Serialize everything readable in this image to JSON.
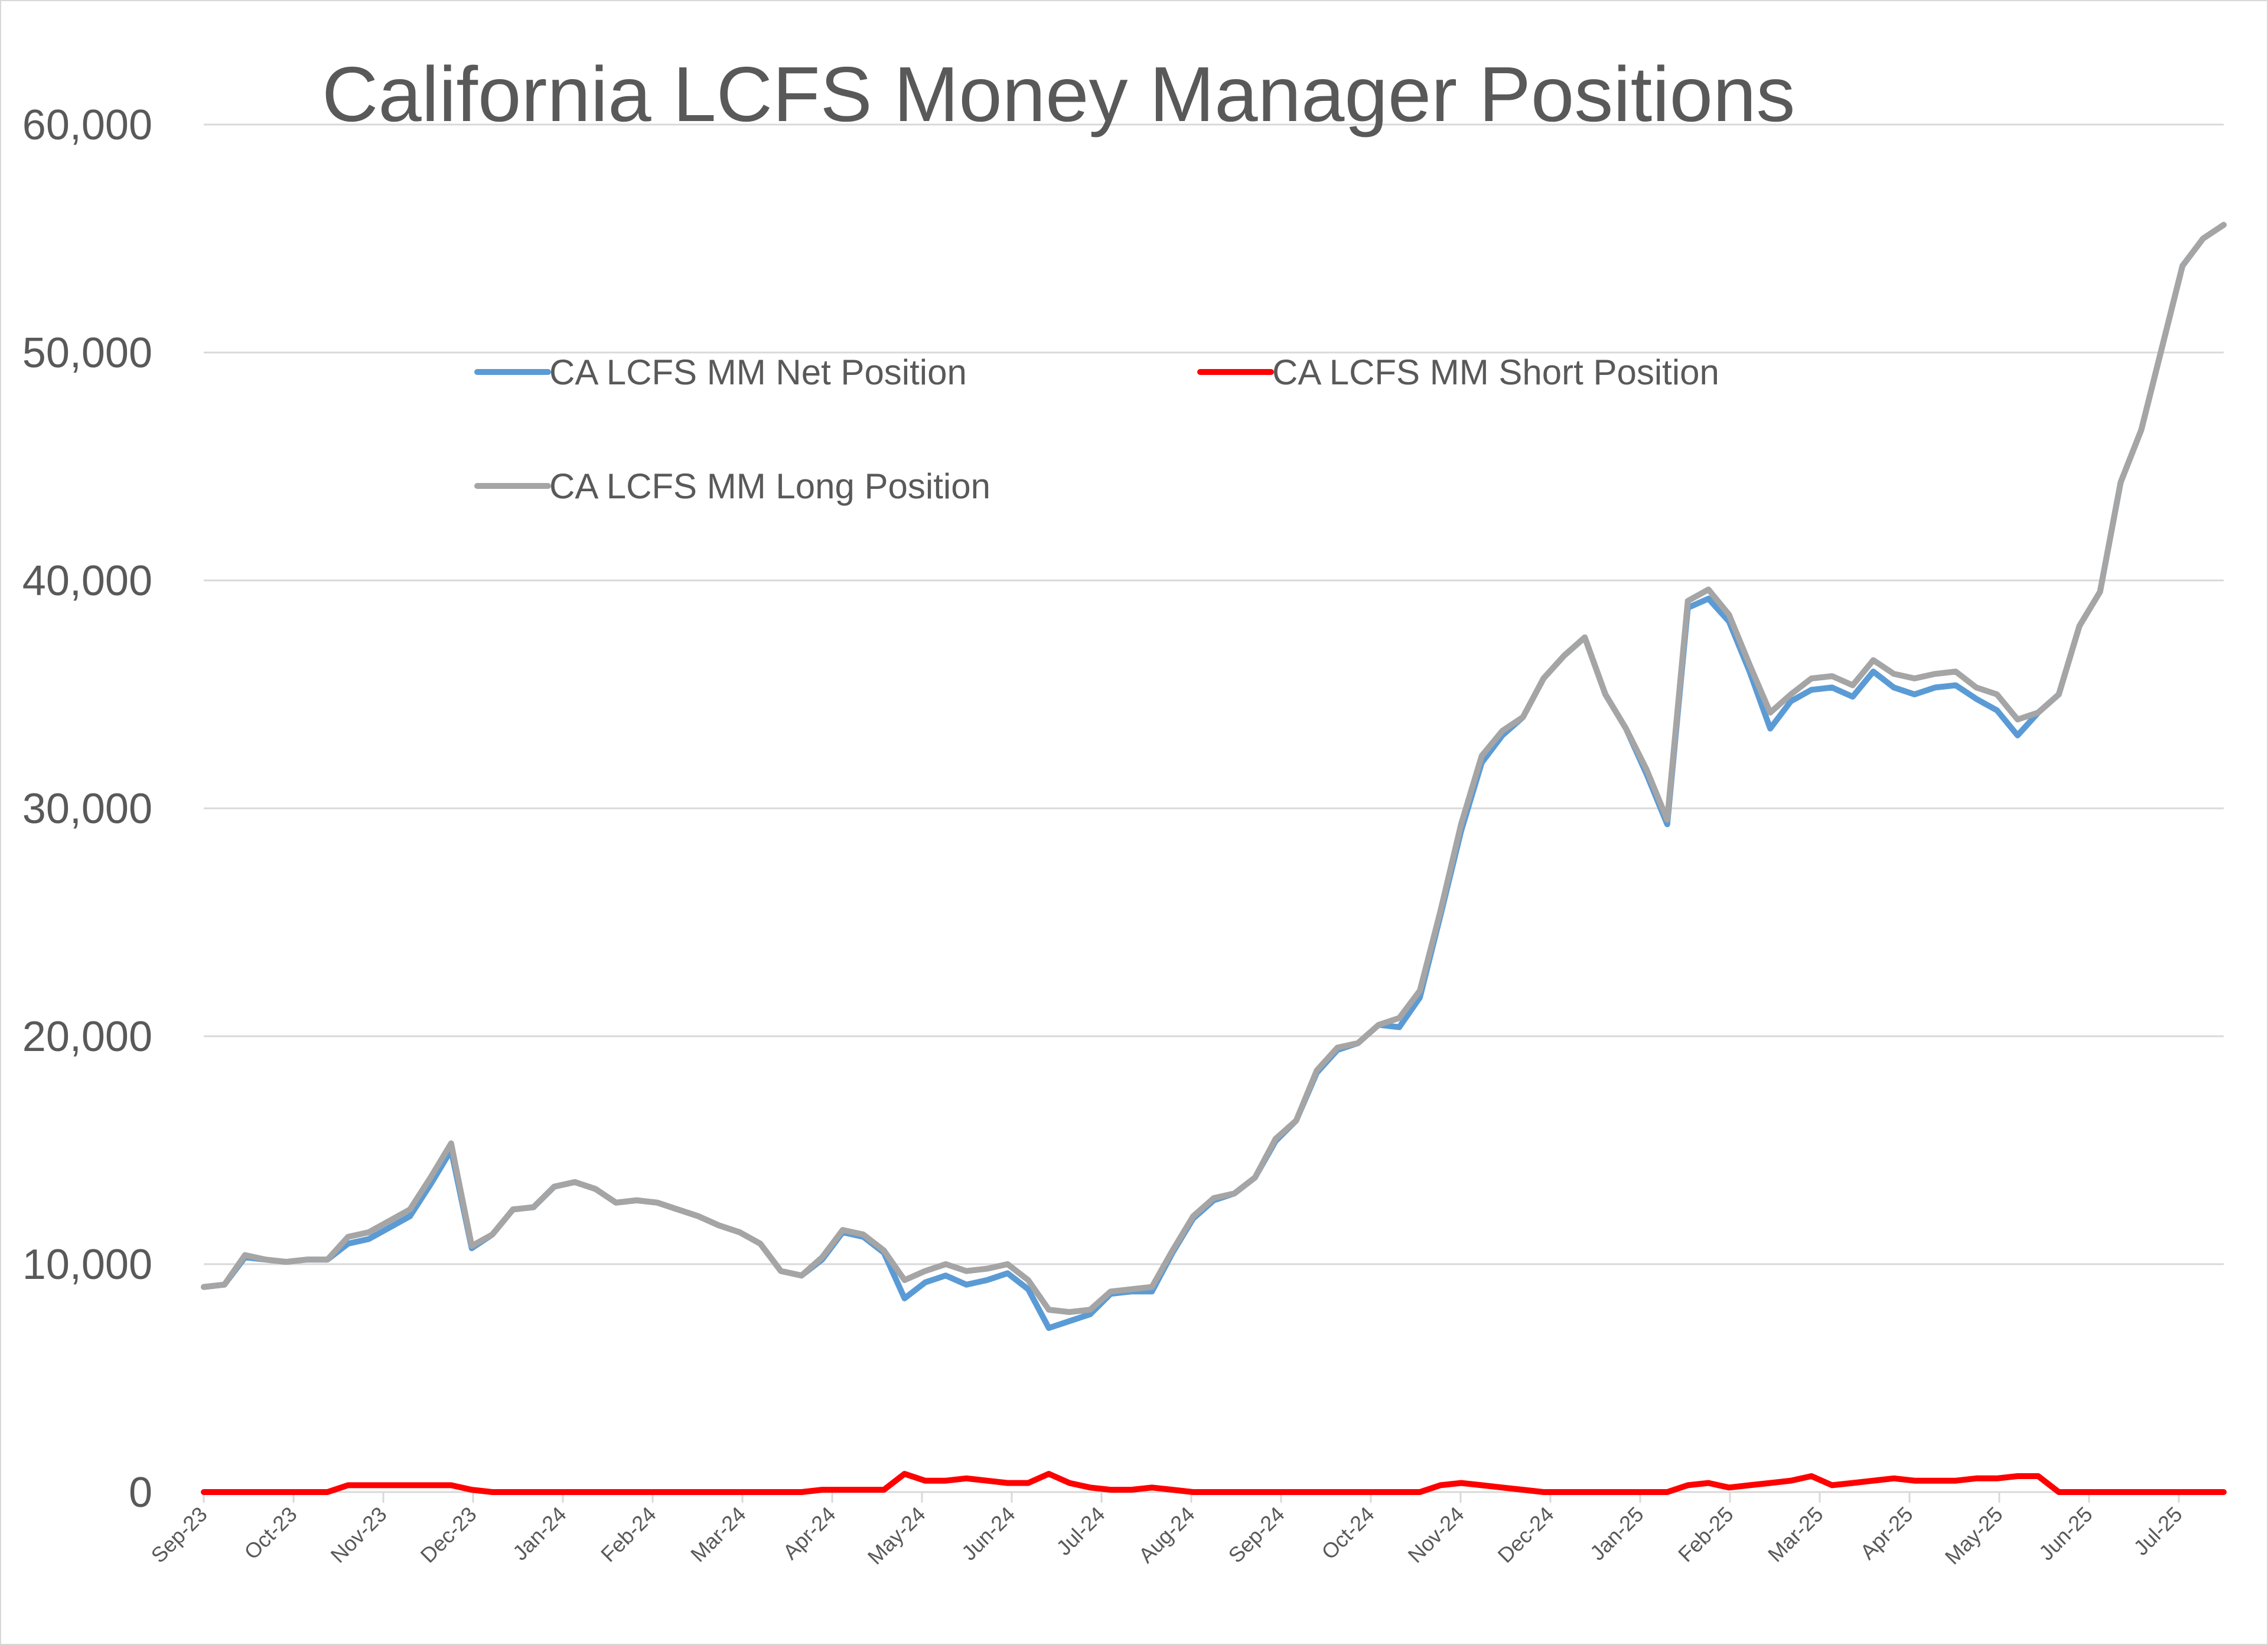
{
  "chart_data": {
    "type": "line",
    "title": "California LCFS Money Manager Positions",
    "xlabel": "",
    "ylabel": "",
    "ylim": [
      0,
      60000
    ],
    "yticks": [
      0,
      10000,
      20000,
      30000,
      40000,
      50000,
      60000
    ],
    "ytick_labels": [
      "0",
      "10,000",
      "20,000",
      "30,000",
      "40,000",
      "50,000",
      "60,000"
    ],
    "grid": true,
    "legend_position": "upper-left",
    "x_tick_labels": [
      "Sep-23",
      "Oct-23",
      "Nov-23",
      "Dec-23",
      "Jan-24",
      "Feb-24",
      "Mar-24",
      "Apr-24",
      "May-24",
      "Jun-24",
      "Jul-24",
      "Aug-24",
      "Sep-24",
      "Oct-24",
      "Nov-24",
      "Dec-24",
      "Jan-25",
      "Feb-25",
      "Mar-25",
      "Apr-25",
      "May-25",
      "Jun-25",
      "Jul-25"
    ],
    "series": [
      {
        "name": "CA LCFS MM Net Position",
        "color": "#5b9bd5",
        "values": [
          9000,
          9100,
          10300,
          10200,
          10100,
          10200,
          10200,
          10900,
          11100,
          11600,
          12100,
          13500,
          15000,
          10700,
          11300,
          12400,
          12500,
          13400,
          13600,
          13300,
          12700,
          12800,
          12700,
          12400,
          12100,
          11700,
          11400,
          10900,
          9700,
          9500,
          10200,
          11400,
          11200,
          10500,
          8500,
          9200,
          9500,
          9100,
          9300,
          9600,
          8900,
          7200,
          7500,
          7800,
          8700,
          8800,
          8800,
          10500,
          12000,
          12800,
          13100,
          13800,
          15400,
          16300,
          18400,
          19400,
          19700,
          20500,
          20400,
          21700,
          25300,
          29000,
          32000,
          33200,
          34000,
          35700,
          36700,
          37500,
          35000,
          33500,
          31500,
          29300,
          38800,
          39200,
          38200,
          36000,
          33500,
          34700,
          35200,
          35300,
          34900,
          36000,
          35300,
          35000,
          35300,
          35400,
          34800,
          34300,
          33200,
          34200,
          35000,
          38000,
          39500,
          44300,
          46600,
          50200,
          53800,
          55000,
          55600
        ]
      },
      {
        "name": "CA LCFS MM Short Position",
        "color": "#ff0000",
        "values": [
          0,
          0,
          0,
          0,
          0,
          0,
          0,
          300,
          300,
          300,
          300,
          300,
          300,
          100,
          0,
          0,
          0,
          0,
          0,
          0,
          0,
          0,
          0,
          0,
          0,
          0,
          0,
          0,
          0,
          0,
          100,
          100,
          100,
          100,
          800,
          500,
          500,
          600,
          500,
          400,
          400,
          800,
          400,
          200,
          100,
          100,
          200,
          100,
          0,
          0,
          0,
          0,
          0,
          0,
          0,
          0,
          0,
          0,
          0,
          0,
          300,
          400,
          300,
          200,
          100,
          0,
          0,
          0,
          0,
          0,
          0,
          0,
          300,
          400,
          200,
          300,
          400,
          500,
          700,
          300,
          400,
          500,
          600,
          500,
          500,
          500,
          600,
          600,
          700,
          700,
          0,
          0,
          0,
          0,
          0,
          0,
          0,
          0,
          0
        ]
      },
      {
        "name": "CA LCFS MM Long Position",
        "color": "#a5a5a5",
        "values": [
          9000,
          9100,
          10400,
          10200,
          10100,
          10200,
          10200,
          11200,
          11400,
          11900,
          12400,
          13800,
          15300,
          10800,
          11300,
          12400,
          12500,
          13400,
          13600,
          13300,
          12700,
          12800,
          12700,
          12400,
          12100,
          11700,
          11400,
          10900,
          9700,
          9500,
          10300,
          11500,
          11300,
          10600,
          9300,
          9700,
          10000,
          9700,
          9800,
          10000,
          9300,
          8000,
          7900,
          8000,
          8800,
          8900,
          9000,
          10600,
          12100,
          12900,
          13100,
          13800,
          15500,
          16300,
          18500,
          19500,
          19700,
          20500,
          20800,
          22000,
          25500,
          29300,
          32300,
          33400,
          34000,
          35700,
          36700,
          37500,
          35000,
          33500,
          31700,
          29500,
          39100,
          39600,
          38500,
          36300,
          34200,
          35000,
          35700,
          35800,
          35400,
          36500,
          35900,
          35700,
          35900,
          36000,
          35300,
          35000,
          33900,
          34200,
          35000,
          38000,
          39500,
          44300,
          46600,
          50200,
          53800,
          55000,
          55600
        ]
      }
    ]
  }
}
